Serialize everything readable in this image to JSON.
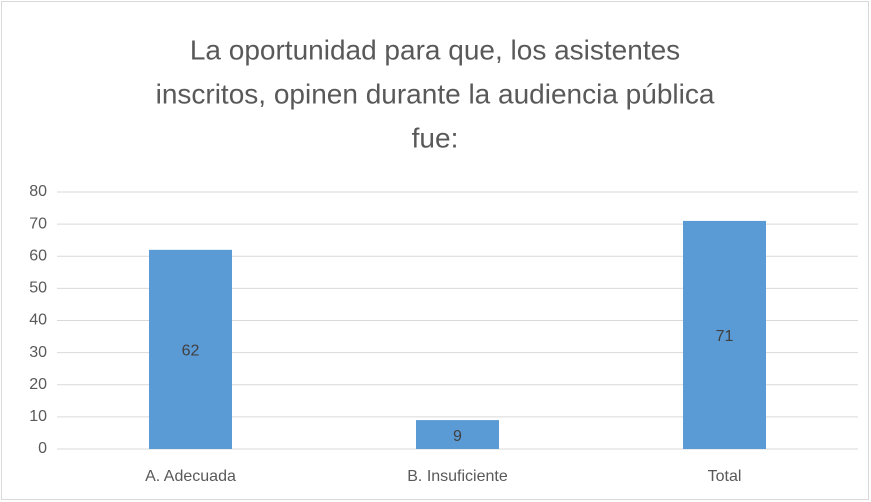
{
  "chart_data": {
    "type": "bar",
    "title": [
      "La oportunidad para que, los asistentes",
      "inscritos, opinen durante la audiencia pública",
      "fue:"
    ],
    "categories": [
      "A. Adecuada",
      "B. Insuficiente",
      "Total"
    ],
    "values": [
      62,
      9,
      71
    ],
    "color": "#5b9bd5",
    "ylim": [
      0,
      80
    ],
    "yticks": [
      0,
      10,
      20,
      30,
      40,
      50,
      60,
      70,
      80
    ],
    "grid": true
  }
}
